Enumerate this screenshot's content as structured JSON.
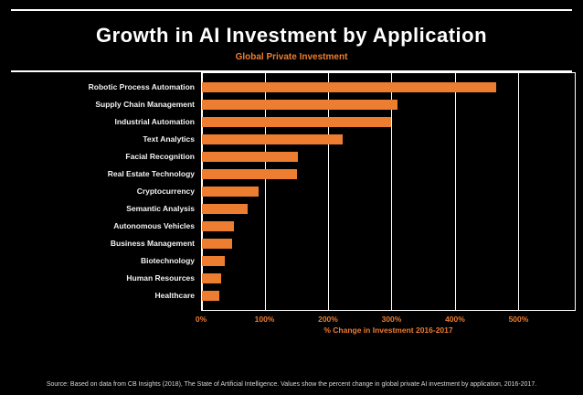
{
  "header": {
    "title": "Growth in AI Investment by Application",
    "subtitle": "Global Private Investment"
  },
  "chart_data": {
    "type": "bar",
    "orientation": "horizontal",
    "title": "Growth in AI Investment by Application",
    "subtitle": "Global Private Investment",
    "categories": [
      "Robotic Process Automation",
      "Supply Chain Management",
      "Industrial Automation",
      "Text Analytics",
      "Facial Recognition",
      "Real Estate Technology",
      "Cryptocurrency",
      "Semantic Analysis",
      "Autonomous Vehicles",
      "Business Management",
      "Biotechnology",
      "Human Resources",
      "Healthcare"
    ],
    "values": [
      466,
      310,
      300,
      222,
      152,
      150,
      90,
      72,
      50,
      47,
      36,
      31,
      28
    ],
    "xlabel": "% Change in Investment 2016-2017",
    "xticks": [
      0,
      100,
      200,
      300,
      400,
      500
    ],
    "xtick_labels": [
      "0%",
      "100%",
      "200%",
      "300%",
      "400%",
      "500%"
    ],
    "xlim": [
      0,
      590
    ],
    "grid": true,
    "legend": "none",
    "bar_color": "#ED7D31",
    "background_color": "#000000",
    "text_color": "#FFFFFF"
  },
  "footer": {
    "source": "Source: Based on data from CB Insights (2018), The State of Artificial Intelligence. Values show the percent change in global private AI investment by application, 2016-2017."
  }
}
